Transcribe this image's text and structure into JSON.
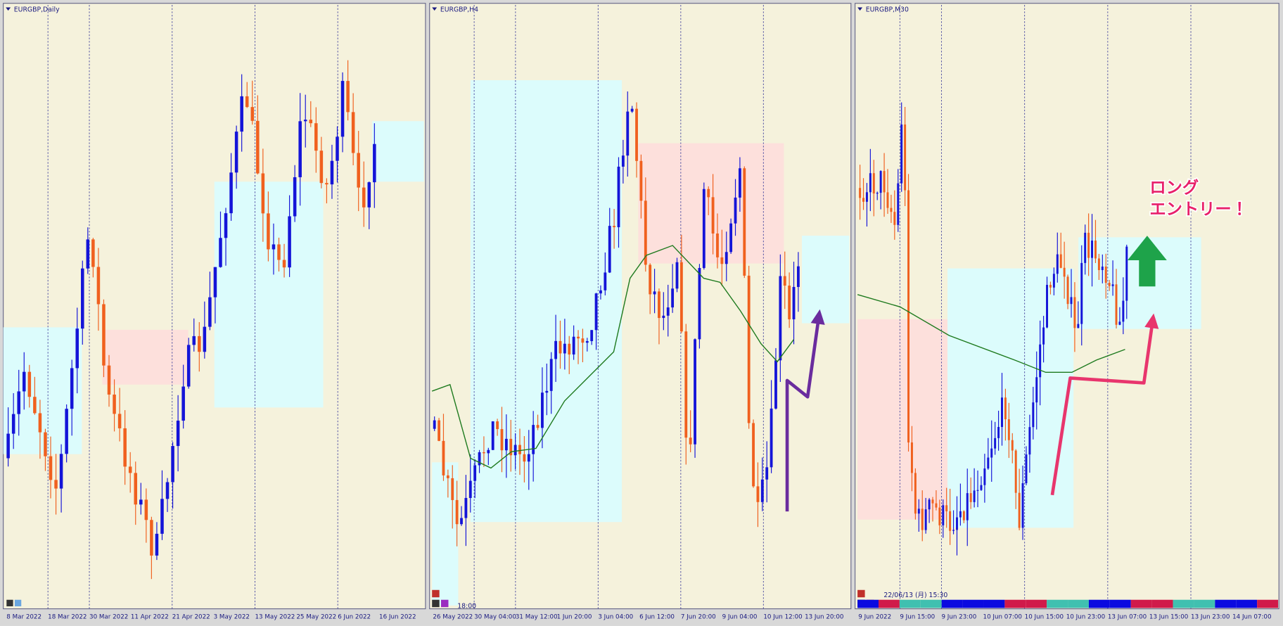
{
  "panels": [
    {
      "title": "EURGBP,Daily",
      "xlabels": [
        "8 Mar 2022",
        "18 Mar 2022",
        "30 Mar 2022",
        "11 Apr 2022",
        "21 Apr 2022",
        "3 May 2022",
        "13 May 2022",
        "25 May 2022",
        "6 Jun 2022",
        "16 Jun 2022"
      ]
    },
    {
      "title": "EURGBP,H4",
      "time": "18:00",
      "xlabels": [
        "26 May 2022",
        "30 May 04:00",
        "31 May 12:00",
        "1 Jun 20:00",
        "3 Jun 04:00",
        "6 Jun 12:00",
        "7 Jun 20:00",
        "9 Jun 04:00",
        "10 Jun 12:00",
        "13 Jun 20:00"
      ]
    },
    {
      "title": "EURGBP,M30",
      "time": "22/06/13 (月) 15:30",
      "xlabels": [
        "9 Jun 2022",
        "9 Jun 15:00",
        "9 Jun 23:00",
        "10 Jun 07:00",
        "10 Jun 15:00",
        "10 Jun 23:00",
        "13 Jun 07:00",
        "13 Jun 15:00",
        "13 Jun 23:00",
        "14 Jun 07:00"
      ]
    }
  ],
  "annotation": {
    "lines": [
      "ロング",
      "エントリー！"
    ]
  }
}
